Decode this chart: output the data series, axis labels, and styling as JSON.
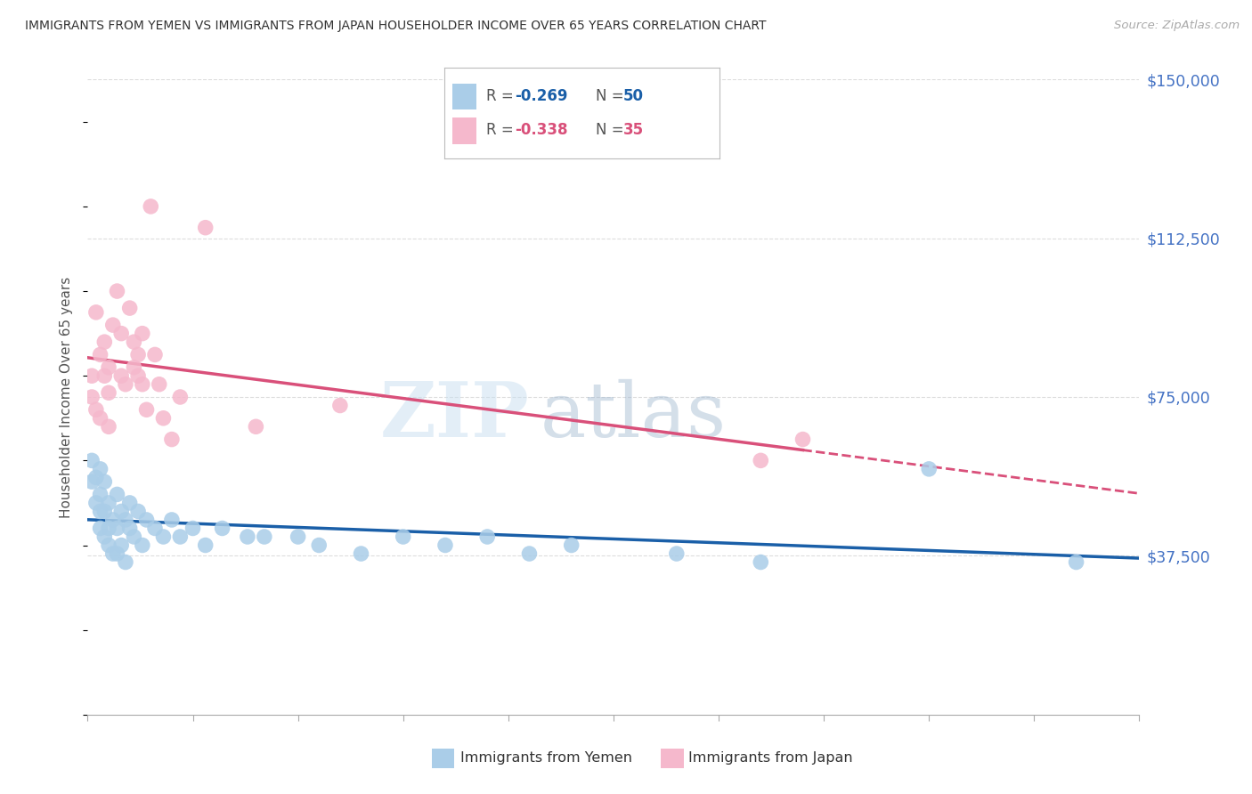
{
  "title": "IMMIGRANTS FROM YEMEN VS IMMIGRANTS FROM JAPAN HOUSEHOLDER INCOME OVER 65 YEARS CORRELATION CHART",
  "source": "Source: ZipAtlas.com",
  "ylabel": "Householder Income Over 65 years",
  "ylabel_ticks": [
    0,
    37500,
    75000,
    112500,
    150000
  ],
  "ylabel_tick_labels": [
    "",
    "$37,500",
    "$75,000",
    "$112,500",
    "$150,000"
  ],
  "xmin": 0.0,
  "xmax": 0.25,
  "ymin": 0,
  "ymax": 150000,
  "yemen_color": "#aacde8",
  "japan_color": "#f5b8cc",
  "yemen_line_color": "#1a5fa8",
  "japan_line_color": "#d9507a",
  "label_color": "#4472c4",
  "r_yemen": "-0.269",
  "n_yemen": "50",
  "r_japan": "-0.338",
  "n_japan": "35",
  "legend_label_yemen": "Immigrants from Yemen",
  "legend_label_japan": "Immigrants from Japan",
  "watermark_zip": "ZIP",
  "watermark_atlas": "atlas",
  "yemen_x": [
    0.001,
    0.001,
    0.002,
    0.002,
    0.003,
    0.003,
    0.003,
    0.003,
    0.004,
    0.004,
    0.004,
    0.005,
    0.005,
    0.005,
    0.006,
    0.006,
    0.007,
    0.007,
    0.007,
    0.008,
    0.008,
    0.009,
    0.009,
    0.01,
    0.01,
    0.011,
    0.012,
    0.013,
    0.014,
    0.016,
    0.018,
    0.02,
    0.022,
    0.025,
    0.028,
    0.032,
    0.038,
    0.042,
    0.05,
    0.055,
    0.065,
    0.075,
    0.085,
    0.095,
    0.105,
    0.115,
    0.14,
    0.16,
    0.2,
    0.235
  ],
  "yemen_y": [
    55000,
    60000,
    50000,
    56000,
    52000,
    48000,
    44000,
    58000,
    55000,
    48000,
    42000,
    50000,
    44000,
    40000,
    46000,
    38000,
    52000,
    44000,
    38000,
    48000,
    40000,
    46000,
    36000,
    50000,
    44000,
    42000,
    48000,
    40000,
    46000,
    44000,
    42000,
    46000,
    42000,
    44000,
    40000,
    44000,
    42000,
    42000,
    42000,
    40000,
    38000,
    42000,
    40000,
    42000,
    38000,
    40000,
    38000,
    36000,
    58000,
    36000
  ],
  "japan_x": [
    0.001,
    0.001,
    0.002,
    0.002,
    0.003,
    0.003,
    0.004,
    0.004,
    0.005,
    0.005,
    0.005,
    0.006,
    0.007,
    0.008,
    0.008,
    0.009,
    0.01,
    0.011,
    0.011,
    0.012,
    0.012,
    0.013,
    0.013,
    0.014,
    0.015,
    0.016,
    0.017,
    0.018,
    0.02,
    0.022,
    0.028,
    0.04,
    0.06,
    0.16,
    0.17
  ],
  "japan_y": [
    75000,
    80000,
    95000,
    72000,
    85000,
    70000,
    88000,
    80000,
    82000,
    76000,
    68000,
    92000,
    100000,
    90000,
    80000,
    78000,
    96000,
    88000,
    82000,
    85000,
    80000,
    90000,
    78000,
    72000,
    120000,
    85000,
    78000,
    70000,
    65000,
    75000,
    115000,
    68000,
    73000,
    60000,
    65000
  ]
}
